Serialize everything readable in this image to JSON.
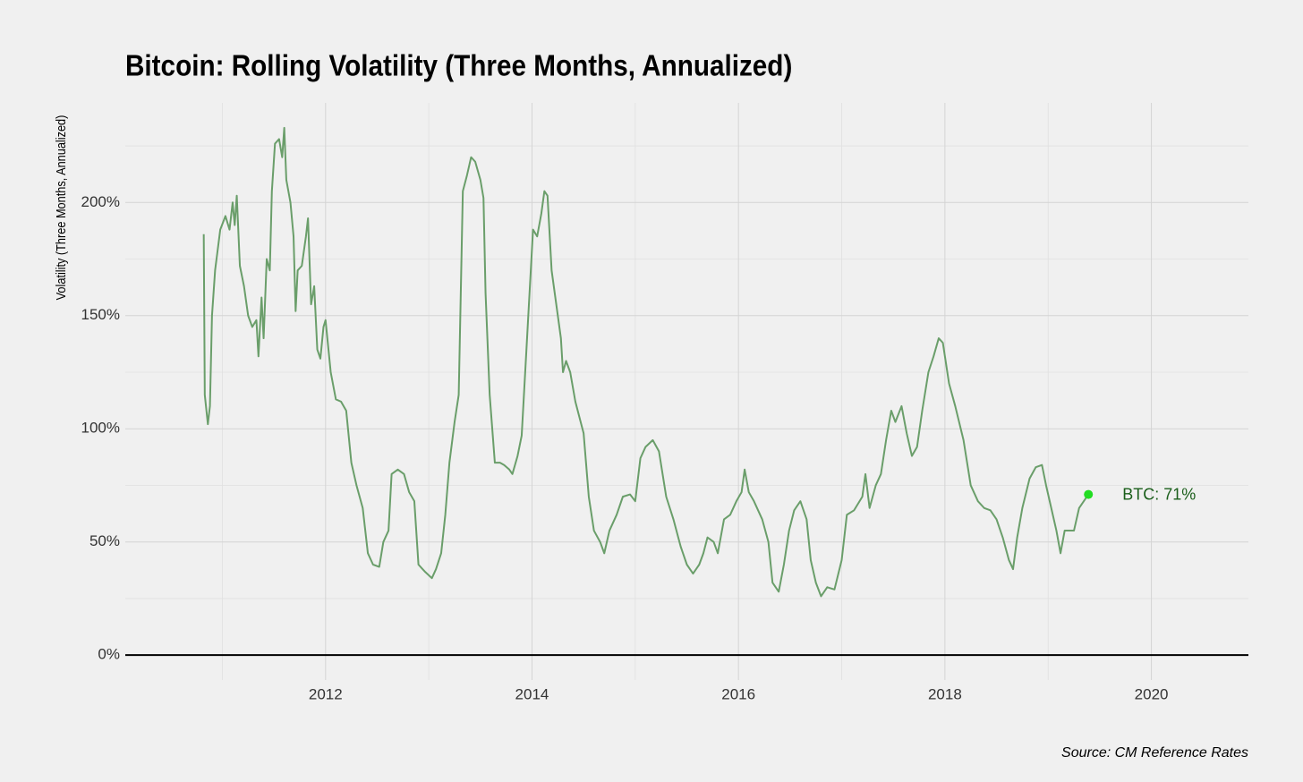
{
  "chart_data": {
    "type": "line",
    "title": "Bitcoin: Rolling Volatility (Three Months, Annualized)",
    "y_label": "Volatility (Three Months, Annualized)",
    "source": "Source: CM Reference Rates",
    "annotation": "BTC: 71%",
    "annotation_color": "#1a5e1a",
    "endpoint_color": "#22dd22",
    "zero_line": true,
    "grid": true,
    "xlim": [
      2010.06,
      2020.94
    ],
    "ylim": [
      -11,
      244
    ],
    "xticks": [
      2012,
      2014,
      2016,
      2018,
      2020
    ],
    "x_minor_ticks": [
      2011,
      2013,
      2015,
      2017,
      2019
    ],
    "yticks": [
      {
        "value": 0,
        "label": "0%"
      },
      {
        "value": 50,
        "label": "50%"
      },
      {
        "value": 100,
        "label": "100%"
      },
      {
        "value": 150,
        "label": "150%"
      },
      {
        "value": 200,
        "label": "200%"
      }
    ],
    "y_minor_ticks": [
      25,
      75,
      125,
      175,
      225
    ],
    "x": [
      2010.82,
      2010.83,
      2010.86,
      2010.88,
      2010.9,
      2010.93,
      2010.98,
      2011.03,
      2011.07,
      2011.1,
      2011.12,
      2011.14,
      2011.17,
      2011.21,
      2011.25,
      2011.29,
      2011.33,
      2011.35,
      2011.38,
      2011.4,
      2011.43,
      2011.46,
      2011.48,
      2011.51,
      2011.55,
      2011.58,
      2011.6,
      2011.62,
      2011.66,
      2011.69,
      2011.71,
      2011.73,
      2011.77,
      2011.81,
      2011.83,
      2011.86,
      2011.89,
      2011.92,
      2011.95,
      2011.98,
      2012.0,
      2012.05,
      2012.1,
      2012.15,
      2012.2,
      2012.25,
      2012.3,
      2012.36,
      2012.41,
      2012.46,
      2012.52,
      2012.56,
      2012.61,
      2012.64,
      2012.7,
      2012.76,
      2012.81,
      2012.86,
      2012.9,
      2012.96,
      2013.03,
      2013.07,
      2013.12,
      2013.16,
      2013.2,
      2013.25,
      2013.29,
      2013.33,
      2013.37,
      2013.41,
      2013.45,
      2013.5,
      2013.53,
      2013.55,
      2013.59,
      2013.64,
      2013.69,
      2013.73,
      2013.78,
      2013.81,
      2013.86,
      2013.9,
      2013.94,
      2013.97,
      2014.01,
      2014.05,
      2014.09,
      2014.12,
      2014.15,
      2014.19,
      2014.25,
      2014.28,
      2014.3,
      2014.33,
      2014.37,
      2014.42,
      2014.46,
      2014.5,
      2014.55,
      2014.6,
      2014.66,
      2014.7,
      2014.75,
      2014.82,
      2014.88,
      2014.95,
      2015.0,
      2015.05,
      2015.1,
      2015.17,
      2015.23,
      2015.3,
      2015.37,
      2015.44,
      2015.5,
      2015.56,
      2015.62,
      2015.66,
      2015.7,
      2015.76,
      2015.8,
      2015.86,
      2015.92,
      2015.98,
      2016.03,
      2016.06,
      2016.1,
      2016.15,
      2016.23,
      2016.29,
      2016.33,
      2016.39,
      2016.44,
      2016.49,
      2016.54,
      2016.6,
      2016.66,
      2016.7,
      2016.75,
      2016.8,
      2016.86,
      2016.93,
      2017.0,
      2017.05,
      2017.12,
      2017.2,
      2017.23,
      2017.27,
      2017.33,
      2017.38,
      2017.43,
      2017.48,
      2017.52,
      2017.58,
      2017.63,
      2017.68,
      2017.73,
      2017.78,
      2017.84,
      2017.89,
      2017.94,
      2017.98,
      2018.04,
      2018.1,
      2018.18,
      2018.25,
      2018.32,
      2018.38,
      2018.44,
      2018.5,
      2018.56,
      2018.62,
      2018.66,
      2018.7,
      2018.75,
      2018.82,
      2018.88,
      2018.94,
      2018.98,
      2019.03,
      2019.08,
      2019.12,
      2019.16,
      2019.25,
      2019.3,
      2019.39
    ],
    "series": [
      {
        "name": "BTC",
        "color": "#6a9e6a",
        "values": [
          186,
          115,
          102,
          110,
          150,
          170,
          188,
          194,
          188,
          200,
          190,
          203,
          172,
          163,
          150,
          145,
          148,
          132,
          158,
          140,
          175,
          170,
          205,
          226,
          228,
          220,
          233,
          210,
          200,
          185,
          152,
          170,
          172,
          185,
          193,
          155,
          163,
          135,
          131,
          145,
          148,
          125,
          113,
          112,
          108,
          85,
          75,
          65,
          45,
          40,
          39,
          50,
          55,
          80,
          82,
          80,
          72,
          68,
          40,
          37,
          34,
          38,
          45,
          62,
          85,
          103,
          115,
          205,
          212,
          220,
          218,
          210,
          202,
          160,
          115,
          85,
          85,
          84,
          82,
          80,
          88,
          97,
          130,
          155,
          188,
          185,
          195,
          205,
          203,
          170,
          150,
          140,
          125,
          130,
          125,
          112,
          105,
          98,
          70,
          55,
          50,
          45,
          55,
          62,
          70,
          71,
          68,
          87,
          92,
          95,
          90,
          70,
          60,
          48,
          40,
          36,
          40,
          45,
          52,
          50,
          45,
          60,
          62,
          68,
          72,
          82,
          72,
          68,
          60,
          50,
          32,
          28,
          40,
          55,
          64,
          68,
          60,
          42,
          32,
          26,
          30,
          29,
          42,
          62,
          64,
          70,
          80,
          65,
          75,
          80,
          95,
          108,
          103,
          110,
          98,
          88,
          92,
          108,
          125,
          132,
          140,
          138,
          120,
          110,
          95,
          75,
          68,
          65,
          64,
          60,
          52,
          42,
          38,
          52,
          65,
          78,
          83,
          84,
          75,
          65,
          55,
          45,
          55,
          55,
          65,
          71
        ]
      }
    ]
  }
}
